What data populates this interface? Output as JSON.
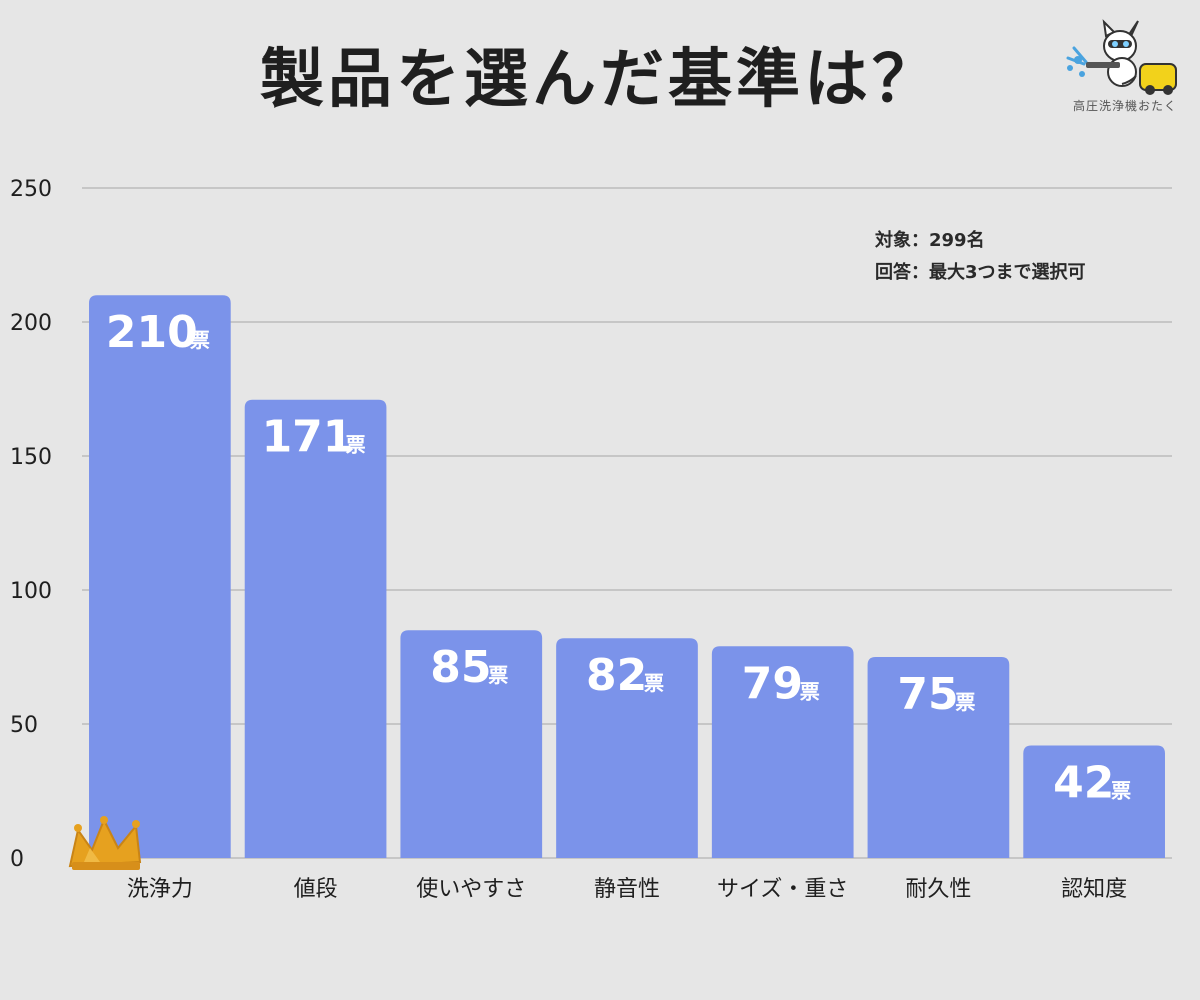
{
  "title": "製品を選んだ基準は？",
  "logo": {
    "caption": "高圧洗浄機おたく",
    "icon": "dog-with-pressure-washer-icon"
  },
  "notes": {
    "subject": "対象：299名",
    "answer": "回答：最大3つまで選択可"
  },
  "crown_icon": "crown-icon",
  "chart_data": {
    "type": "bar",
    "title": "製品を選んだ基準は？",
    "categories": [
      "洗浄力",
      "値段",
      "使いやすさ",
      "静音性",
      "サイズ・重さ",
      "耐久性",
      "認知度"
    ],
    "values": [
      210,
      171,
      85,
      82,
      79,
      75,
      42
    ],
    "value_unit": "票",
    "ylim": [
      0,
      250
    ],
    "yticks": [
      0,
      50,
      100,
      150,
      200,
      250
    ],
    "grid": true,
    "bar_color": "#7b93ea",
    "xlabel": "",
    "ylabel": ""
  }
}
